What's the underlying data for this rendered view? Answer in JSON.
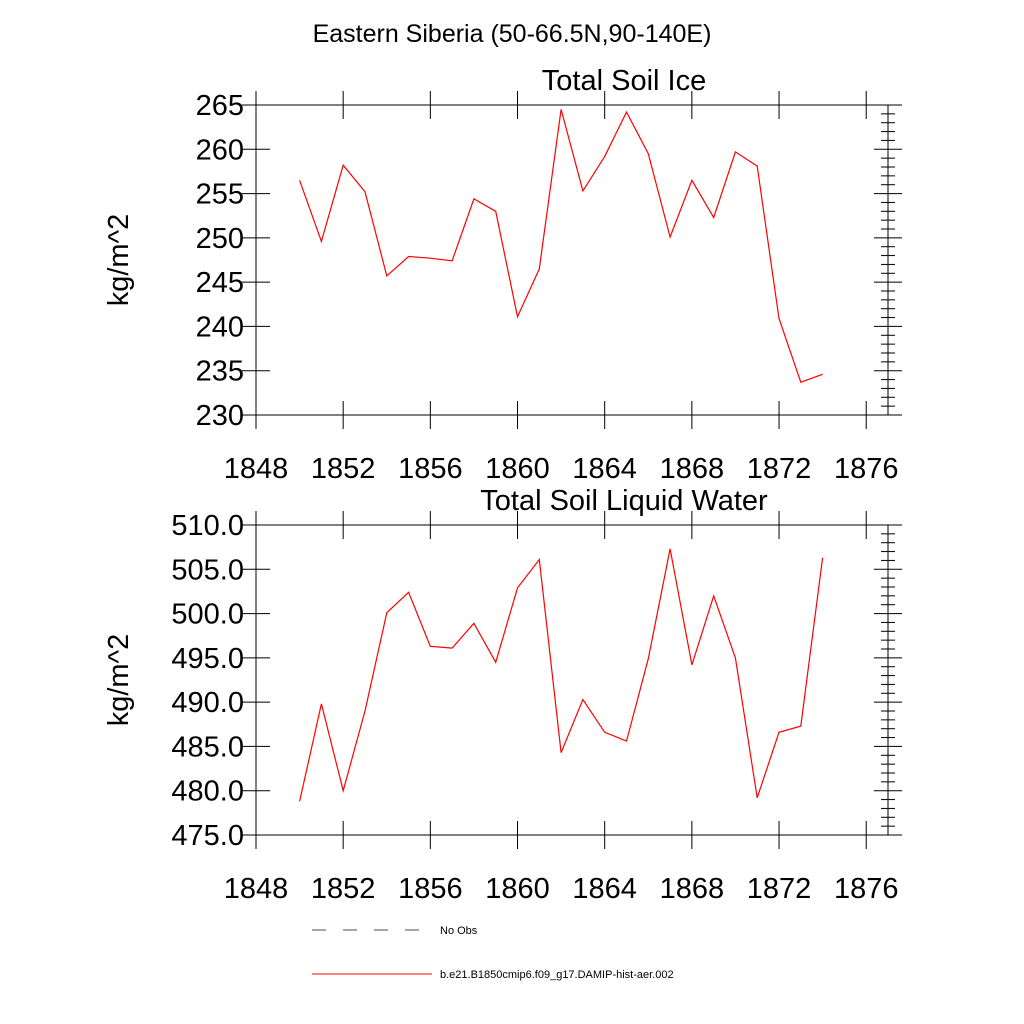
{
  "figure": {
    "title": "Eastern Siberia (50-66.5N,90-140E)"
  },
  "legend": {
    "entries": [
      {
        "label": "No Obs",
        "style": "dashed",
        "color": "#4a4a6a"
      },
      {
        "label": "b.e21.B1850cmip6.f09_g17.DAMIP-hist-aer.002",
        "style": "solid",
        "color": "#ff0000"
      }
    ]
  },
  "chart_data": [
    {
      "type": "line",
      "title": "Total Soil Ice",
      "xlabel": "",
      "ylabel": "kg/m^2",
      "xlim": [
        1848,
        1877
      ],
      "ylim": [
        230,
        265
      ],
      "xticks": [
        1848,
        1852,
        1856,
        1860,
        1864,
        1868,
        1872,
        1876
      ],
      "xtick_labels": [
        "1848",
        "1852",
        "1856",
        "1860",
        "1864",
        "1868",
        "1872",
        "1876"
      ],
      "yticks": [
        230,
        235,
        240,
        245,
        250,
        255,
        260,
        265
      ],
      "ytick_labels": [
        "230",
        "235",
        "240",
        "245",
        "250",
        "255",
        "260",
        "265"
      ],
      "grid": false,
      "series": [
        {
          "name": "b.e21.B1850cmip6.f09_g17.DAMIP-hist-aer.002",
          "color": "#ff0000",
          "x": [
            1850,
            1851,
            1852,
            1853,
            1854,
            1855,
            1856,
            1857,
            1858,
            1859,
            1860,
            1861,
            1862,
            1863,
            1864,
            1865,
            1866,
            1867,
            1868,
            1869,
            1870,
            1871,
            1872,
            1873,
            1874
          ],
          "values": [
            256.5,
            249.6,
            258.2,
            255.2,
            245.7,
            247.9,
            247.7,
            247.4,
            254.4,
            253.0,
            241.1,
            246.5,
            264.5,
            255.3,
            259.2,
            264.2,
            259.5,
            250.1,
            256.5,
            252.3,
            259.7,
            258.1,
            240.9,
            233.7,
            234.6
          ]
        }
      ]
    },
    {
      "type": "line",
      "title": "Total Soil Liquid Water",
      "xlabel": "",
      "ylabel": "kg/m^2",
      "xlim": [
        1848,
        1877
      ],
      "ylim": [
        475,
        510
      ],
      "xticks": [
        1848,
        1852,
        1856,
        1860,
        1864,
        1868,
        1872,
        1876
      ],
      "xtick_labels": [
        "1848",
        "1852",
        "1856",
        "1860",
        "1864",
        "1868",
        "1872",
        "1876"
      ],
      "yticks": [
        475,
        480,
        485,
        490,
        495,
        500,
        505,
        510
      ],
      "ytick_labels": [
        "475.0",
        "480.0",
        "485.0",
        "490.0",
        "495.0",
        "500.0",
        "505.0",
        "510.0"
      ],
      "grid": false,
      "series": [
        {
          "name": "b.e21.B1850cmip6.f09_g17.DAMIP-hist-aer.002",
          "color": "#ff0000",
          "x": [
            1850,
            1851,
            1852,
            1853,
            1854,
            1855,
            1856,
            1857,
            1858,
            1859,
            1860,
            1861,
            1862,
            1863,
            1864,
            1865,
            1866,
            1867,
            1868,
            1869,
            1870,
            1871,
            1872,
            1873,
            1874
          ],
          "values": [
            478.8,
            489.8,
            480.0,
            489.0,
            500.1,
            502.4,
            496.3,
            496.1,
            498.9,
            494.5,
            502.9,
            506.1,
            484.3,
            490.3,
            486.6,
            485.6,
            494.9,
            507.3,
            494.2,
            502.0,
            495.0,
            479.2,
            486.6,
            487.3,
            506.3
          ]
        }
      ]
    }
  ]
}
